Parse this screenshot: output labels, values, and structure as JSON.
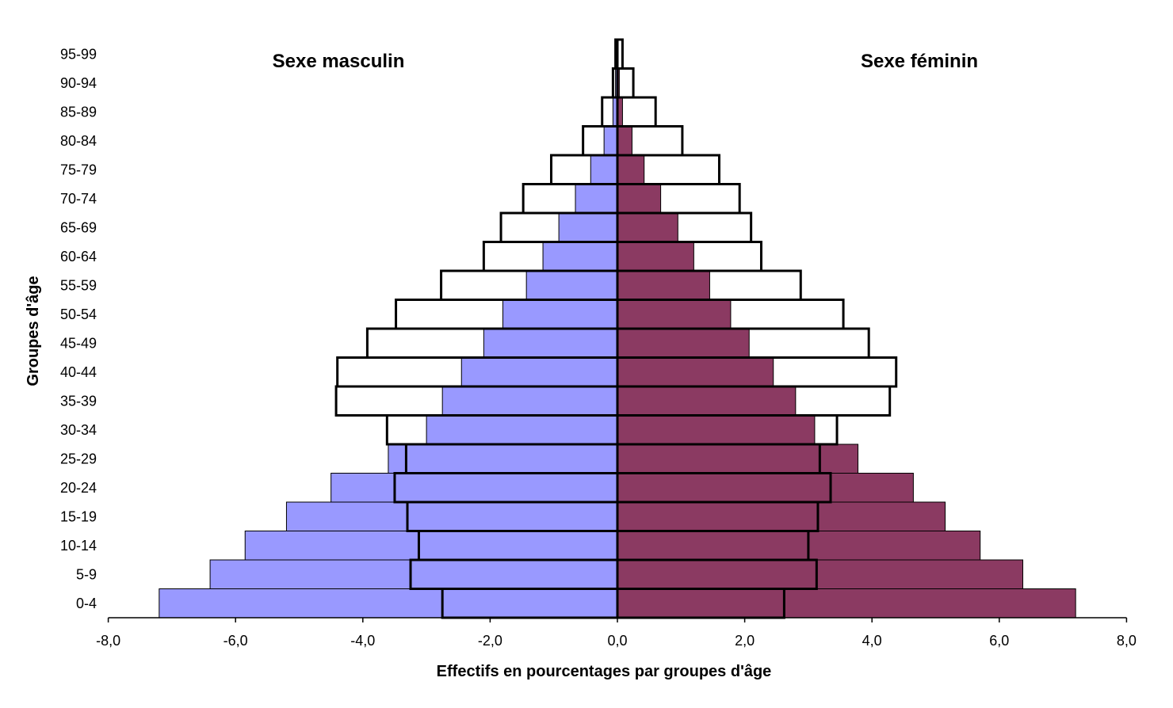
{
  "chart_data": {
    "type": "bar",
    "orientation": "horizontal",
    "chart_kind": "population-pyramid",
    "categories": [
      "0-4",
      "5-9",
      "10-14",
      "15-19",
      "20-24",
      "25-29",
      "30-34",
      "35-39",
      "40-44",
      "45-49",
      "50-54",
      "55-59",
      "60-64",
      "65-69",
      "70-74",
      "75-79",
      "80-84",
      "85-89",
      "90-94",
      "95-99"
    ],
    "series": [
      {
        "side": "male",
        "style": "filled",
        "color": "#9999ff",
        "values": [
          -7.2,
          -6.4,
          -5.85,
          -5.2,
          -4.5,
          -3.6,
          -3.0,
          -2.75,
          -2.45,
          -2.1,
          -1.8,
          -1.43,
          -1.17,
          -0.92,
          -0.66,
          -0.42,
          -0.21,
          -0.07,
          -0.03,
          0
        ]
      },
      {
        "side": "female",
        "style": "filled",
        "color": "#8b3a62",
        "values": [
          7.2,
          6.37,
          5.7,
          5.15,
          4.65,
          3.78,
          3.1,
          2.8,
          2.45,
          2.07,
          1.78,
          1.45,
          1.2,
          0.95,
          0.68,
          0.42,
          0.23,
          0.08,
          0.03,
          0
        ]
      },
      {
        "side": "male",
        "style": "outline",
        "values": [
          -2.75,
          -3.25,
          -3.12,
          -3.3,
          -3.5,
          -3.32,
          -3.62,
          -4.42,
          -4.4,
          -3.93,
          -3.48,
          -2.77,
          -2.1,
          -1.83,
          -1.48,
          -1.04,
          -0.54,
          -0.24,
          -0.07,
          -0.03
        ]
      },
      {
        "side": "female",
        "style": "outline",
        "values": [
          2.62,
          3.13,
          3.0,
          3.15,
          3.35,
          3.18,
          3.45,
          4.28,
          4.38,
          3.95,
          3.55,
          2.88,
          2.26,
          2.1,
          1.92,
          1.6,
          1.02,
          0.6,
          0.25,
          0.08
        ]
      }
    ],
    "x_ticks": [
      "-8,0",
      "-6,0",
      "-4,0",
      "-2,0",
      "0,0",
      "2,0",
      "4,0",
      "6,0",
      "8,0"
    ],
    "xlim": [
      -8,
      8
    ],
    "xlabel": "Effectifs  en pourcentages par groupes d'âge",
    "ylabel": "Groupes d'âge",
    "annotations": {
      "male": "Sexe masculin",
      "female": "Sexe féminin"
    },
    "grid": false,
    "legend": "none"
  }
}
